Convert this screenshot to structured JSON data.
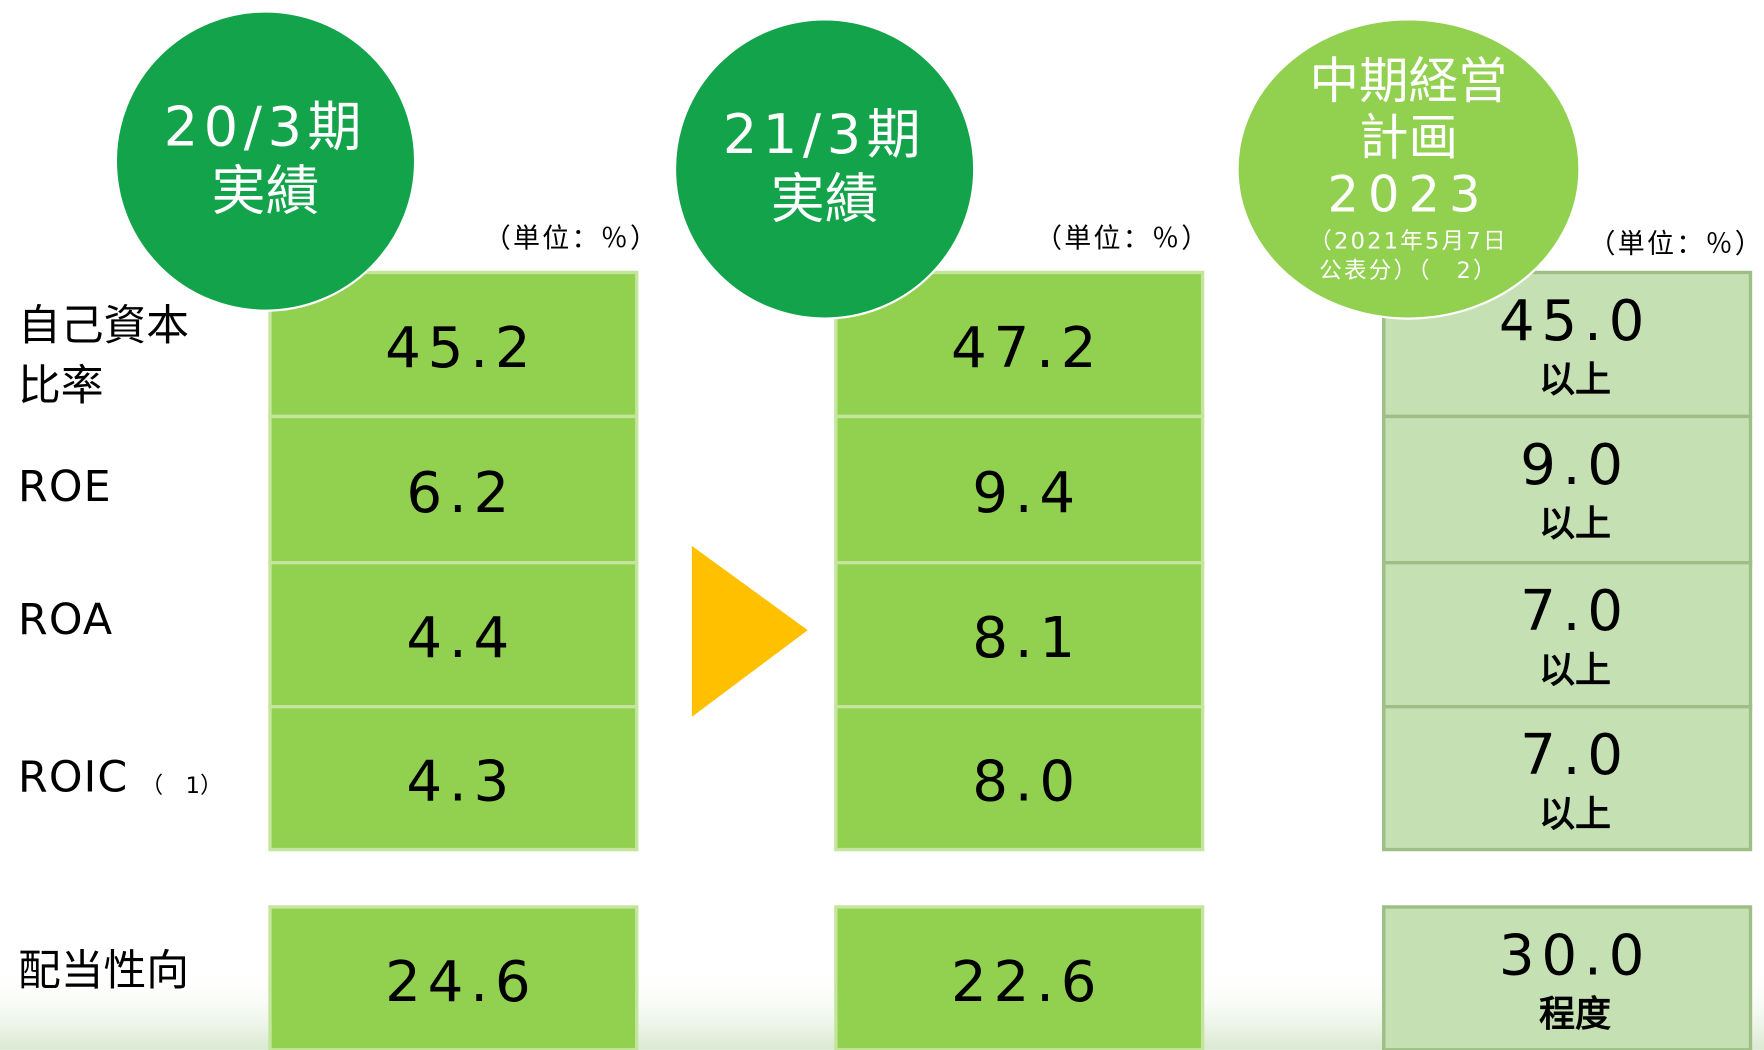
{
  "row_labels": [
    {
      "lines": [
        "自己資本",
        "比率"
      ]
    },
    {
      "lines": [
        "ROE"
      ]
    },
    {
      "lines": [
        "ROA"
      ]
    },
    {
      "lines": [
        "ROIC"
      ],
      "note": "（　1）"
    },
    {
      "lines": [
        "配当性向"
      ]
    }
  ],
  "columns": [
    {
      "header_lines": [
        "20/3期",
        "実績"
      ],
      "unit": "（単位：％）",
      "values": [
        "45.2",
        "6.2",
        "4.4",
        "4.3",
        "24.6"
      ]
    },
    {
      "header_lines": [
        "21/3期",
        "実績"
      ],
      "unit": "（単位：％）",
      "values": [
        "47.2",
        "9.4",
        "8.1",
        "8.0",
        "22.6"
      ]
    },
    {
      "header_lines": [
        "中期経営",
        "計画",
        "2023"
      ],
      "header_note_lines": [
        "（2021年5月7日",
        "公表分）（　2）"
      ],
      "unit": "（単位：％）",
      "values": [
        "45.0",
        "9.0",
        "7.0",
        "7.0",
        "30.0"
      ],
      "qualifiers": [
        "以上",
        "以上",
        "以上",
        "以上",
        "程度"
      ]
    }
  ]
}
